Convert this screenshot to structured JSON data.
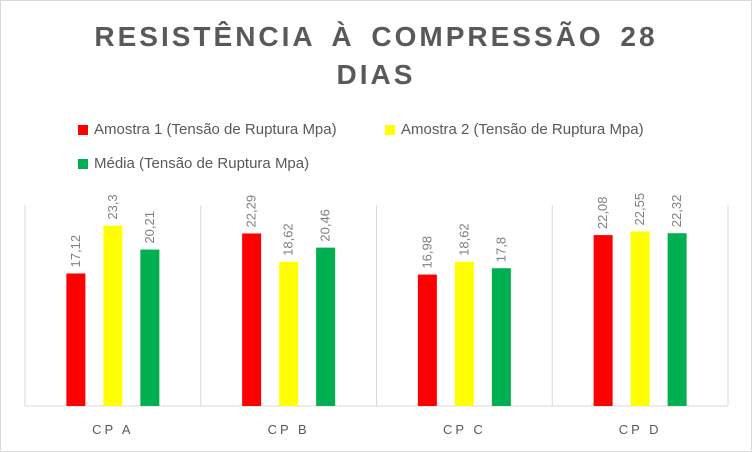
{
  "chart_data": {
    "type": "bar",
    "title_lines": [
      "RESISTÊNCIA  À  COMPRESSÃO  28",
      "DIAS"
    ],
    "categories": [
      "CP A",
      "CP B",
      "CP C",
      "CP D"
    ],
    "series": [
      {
        "name": "Amostra 1 (Tensão de  Ruptura Mpa)",
        "color": "#ff0000",
        "values": [
          17.12,
          22.29,
          16.98,
          22.08
        ],
        "labels": [
          "17,12",
          "22,29",
          "16,98",
          "22,08"
        ]
      },
      {
        "name": "Amostra 2  (Tensão de  Ruptura Mpa)",
        "color": "#ffff00",
        "values": [
          23.3,
          18.62,
          18.62,
          22.55
        ],
        "labels": [
          "23,3",
          "18,62",
          "18,62",
          "22,55"
        ]
      },
      {
        "name": "Média (Tensão de  Ruptura Mpa)",
        "color": "#00b050",
        "values": [
          20.21,
          20.46,
          17.8,
          22.32
        ],
        "labels": [
          "20,21",
          "20,46",
          "17,8",
          "22,32"
        ]
      }
    ],
    "ylim": [
      0,
      27
    ],
    "grid": "vertical separators between categories",
    "legend_position": "top"
  }
}
